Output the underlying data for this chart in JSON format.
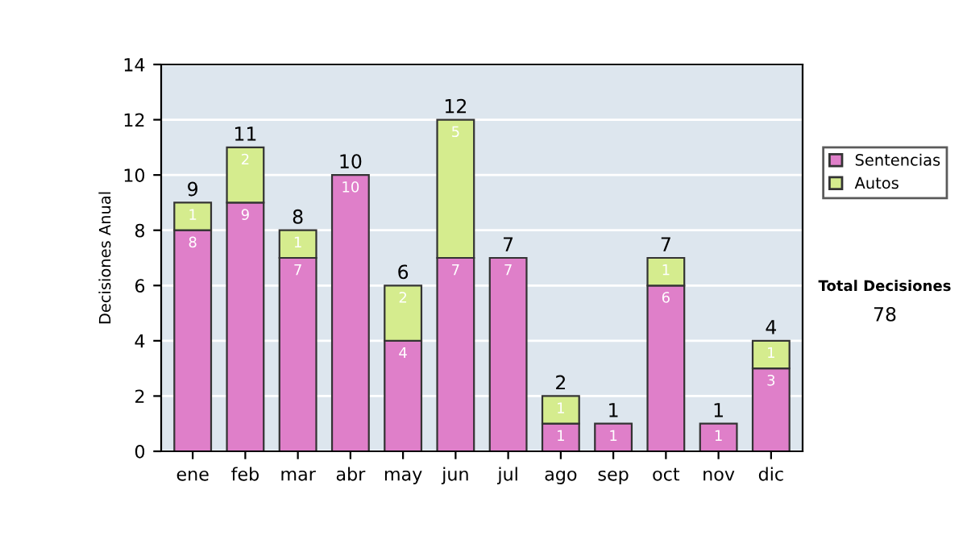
{
  "chart_data": {
    "type": "bar",
    "stacked": true,
    "ylabel": "Decisiones Anual",
    "categories": [
      "ene",
      "feb",
      "mar",
      "abr",
      "may",
      "jun",
      "jul",
      "ago",
      "sep",
      "oct",
      "nov",
      "dic"
    ],
    "series": [
      {
        "name": "Sentencias",
        "color": "#df7fc9",
        "values": [
          8,
          9,
          7,
          10,
          4,
          7,
          7,
          1,
          1,
          6,
          1,
          3
        ],
        "value_labels": [
          "8",
          "9",
          "7",
          "10",
          "4",
          "7",
          "7",
          "1",
          "1",
          "6",
          "1",
          "3"
        ]
      },
      {
        "name": "Autos",
        "color": "#d5ec8e",
        "values": [
          1,
          2,
          1,
          0,
          2,
          5,
          0,
          1,
          0,
          1,
          0,
          1
        ],
        "value_labels": [
          "1",
          "2",
          "1",
          null,
          "2",
          "5",
          null,
          "1",
          null,
          "1",
          null,
          "1"
        ]
      }
    ],
    "totals": [
      "9",
      "11",
      "8",
      "10",
      "6",
      "12",
      "7",
      "2",
      "1",
      "7",
      "1",
      "4"
    ],
    "ylim": [
      0,
      14
    ],
    "yticks": [
      0,
      2,
      4,
      6,
      8,
      10,
      12,
      14
    ],
    "grid": "y",
    "legend": "right",
    "annotations": [
      "Total Decisiones",
      "78"
    ]
  }
}
